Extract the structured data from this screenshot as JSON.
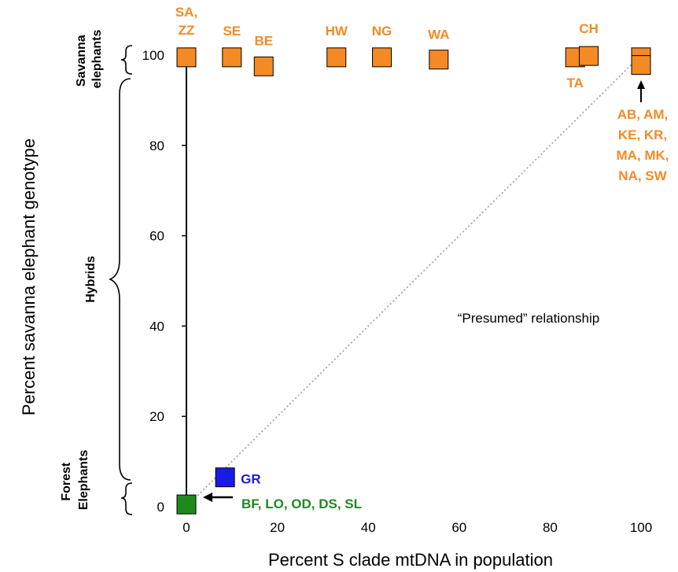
{
  "colors": {
    "savanna": "#F48A24",
    "hybrid": "#1A1AE6",
    "forest": "#1E8A1E",
    "axis": "#000000",
    "reference": "#9A9A9A"
  },
  "chart_data": {
    "type": "scatter",
    "title": "",
    "xlabel": "Percent S clade mtDNA in population",
    "ylabel": "Percent savanna elephant genotype",
    "xlim": [
      0,
      100
    ],
    "ylim": [
      0,
      100
    ],
    "x_ticks": [
      0,
      20,
      40,
      60,
      80,
      100
    ],
    "y_ticks": [
      0,
      20,
      40,
      60,
      80,
      100
    ],
    "grid": false,
    "group_labels": {
      "savanna": [
        "Savanna",
        "elephants"
      ],
      "hybrids": "Hybrids",
      "forest": [
        "Forest",
        "Elephants"
      ]
    },
    "reference_line": {
      "label": "“Presumed” relationship",
      "from": [
        0,
        0
      ],
      "to": [
        100,
        100
      ]
    },
    "points": [
      {
        "group": "savanna",
        "x": 0,
        "y": 99.5,
        "label": [
          "SA,",
          "ZZ"
        ]
      },
      {
        "group": "savanna",
        "x": 10,
        "y": 99.5,
        "label": [
          "SE"
        ]
      },
      {
        "group": "savanna",
        "x": 17,
        "y": 97.5,
        "label": [
          "BE"
        ]
      },
      {
        "group": "savanna",
        "x": 33,
        "y": 99.5,
        "label": [
          "HW"
        ]
      },
      {
        "group": "savanna",
        "x": 43,
        "y": 99.5,
        "label": [
          "NG"
        ]
      },
      {
        "group": "savanna",
        "x": 55.5,
        "y": 99,
        "label": [
          "WA"
        ]
      },
      {
        "group": "savanna",
        "x": 85.5,
        "y": 99.5,
        "label": [
          "TA"
        ]
      },
      {
        "group": "savanna",
        "x": 88.5,
        "y": 99.8,
        "label": [
          "CH"
        ]
      },
      {
        "group": "savanna",
        "x": 100,
        "y": 99.5,
        "label": [
          "AB, AM,",
          "KE, KR,",
          "MA, MK,",
          "NA, SW"
        ]
      },
      {
        "group": "savanna",
        "x": 100,
        "y": 97.8,
        "label": []
      },
      {
        "group": "hybrid",
        "x": 8.5,
        "y": 6.5,
        "label": [
          "GR"
        ]
      },
      {
        "group": "forest",
        "x": 0,
        "y": 0.5,
        "label": [
          "BF, LO, OD, DS, SL"
        ]
      }
    ]
  }
}
